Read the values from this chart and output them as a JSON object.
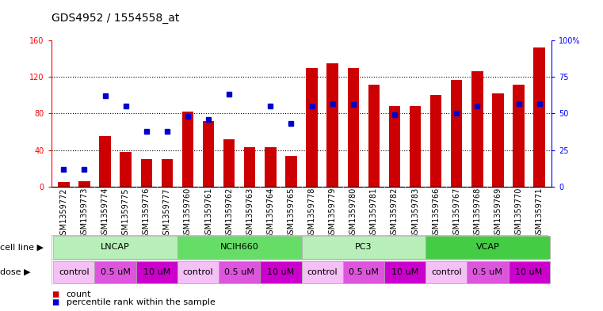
{
  "title": "GDS4952 / 1554558_at",
  "samples": [
    "GSM1359772",
    "GSM1359773",
    "GSM1359774",
    "GSM1359775",
    "GSM1359776",
    "GSM1359777",
    "GSM1359760",
    "GSM1359761",
    "GSM1359762",
    "GSM1359763",
    "GSM1359764",
    "GSM1359765",
    "GSM1359778",
    "GSM1359779",
    "GSM1359780",
    "GSM1359781",
    "GSM1359782",
    "GSM1359783",
    "GSM1359766",
    "GSM1359767",
    "GSM1359768",
    "GSM1359769",
    "GSM1359770",
    "GSM1359771"
  ],
  "counts": [
    5,
    6,
    55,
    38,
    30,
    30,
    82,
    72,
    52,
    43,
    43,
    34,
    130,
    135,
    130,
    112,
    88,
    88,
    100,
    117,
    126,
    102,
    112,
    152
  ],
  "percentiles": [
    12,
    12,
    62,
    55,
    38,
    38,
    48,
    46,
    63,
    0,
    55,
    43,
    55,
    57,
    56,
    0,
    49,
    0,
    0,
    50,
    55,
    0,
    57,
    57
  ],
  "show_percentile": [
    true,
    true,
    true,
    true,
    true,
    true,
    true,
    true,
    true,
    false,
    true,
    true,
    true,
    true,
    true,
    false,
    true,
    false,
    false,
    true,
    true,
    false,
    true,
    true
  ],
  "cell_lines": [
    {
      "name": "LNCAP",
      "start": 0,
      "end": 6,
      "color": "#b8efb8"
    },
    {
      "name": "NCIH660",
      "start": 6,
      "end": 12,
      "color": "#66dd66"
    },
    {
      "name": "PC3",
      "start": 12,
      "end": 18,
      "color": "#b8efb8"
    },
    {
      "name": "VCAP",
      "start": 18,
      "end": 24,
      "color": "#44cc44"
    }
  ],
  "doses": [
    {
      "name": "control",
      "start": 0,
      "end": 2,
      "color": "#f5c0f5"
    },
    {
      "name": "0.5 uM",
      "start": 2,
      "end": 4,
      "color": "#dd55dd"
    },
    {
      "name": "10 uM",
      "start": 4,
      "end": 6,
      "color": "#cc00cc"
    },
    {
      "name": "control",
      "start": 6,
      "end": 8,
      "color": "#f5c0f5"
    },
    {
      "name": "0.5 uM",
      "start": 8,
      "end": 10,
      "color": "#dd55dd"
    },
    {
      "name": "10 uM",
      "start": 10,
      "end": 12,
      "color": "#cc00cc"
    },
    {
      "name": "control",
      "start": 12,
      "end": 14,
      "color": "#f5c0f5"
    },
    {
      "name": "0.5 uM",
      "start": 14,
      "end": 16,
      "color": "#dd55dd"
    },
    {
      "name": "10 uM",
      "start": 16,
      "end": 18,
      "color": "#cc00cc"
    },
    {
      "name": "control",
      "start": 18,
      "end": 20,
      "color": "#f5c0f5"
    },
    {
      "name": "0.5 uM",
      "start": 20,
      "end": 22,
      "color": "#dd55dd"
    },
    {
      "name": "10 uM",
      "start": 22,
      "end": 24,
      "color": "#cc00cc"
    }
  ],
  "ylim_left": [
    0,
    160
  ],
  "ylim_right": [
    0,
    100
  ],
  "yticks_left": [
    0,
    40,
    80,
    120,
    160
  ],
  "yticks_right": [
    0,
    25,
    50,
    75,
    100
  ],
  "bar_color": "#cc0000",
  "dot_color": "#0000cc",
  "tick_fontsize": 7,
  "label_fontsize": 8,
  "legend_fontsize": 8,
  "title_fontsize": 10,
  "sample_bg_color": "#d0d0d0",
  "grid_yticks": [
    40,
    80,
    120
  ]
}
